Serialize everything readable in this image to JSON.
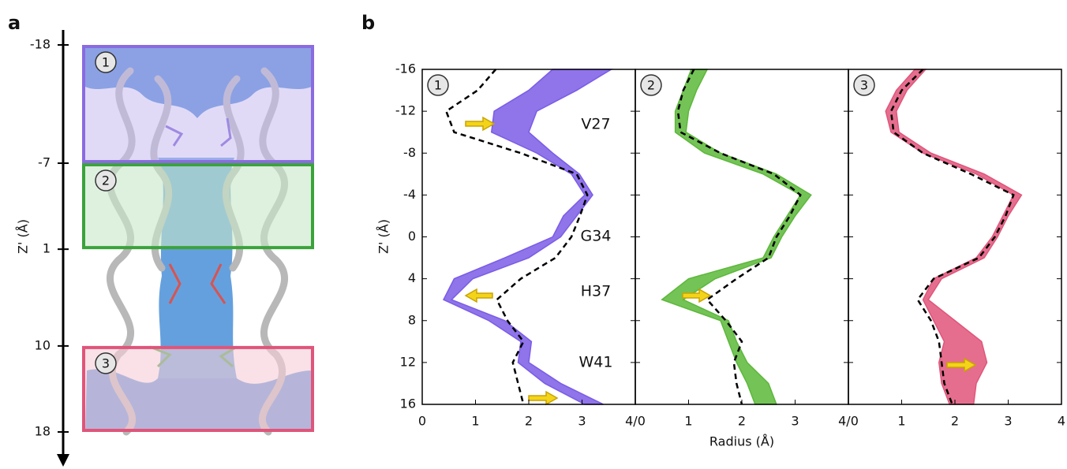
{
  "panel_a": {
    "label": "a",
    "axis_label": "Z' (Å)",
    "ylim": [
      -18,
      18
    ],
    "yticks": [
      -18,
      -7,
      1,
      10,
      18
    ],
    "regions": [
      "1",
      "2",
      "3"
    ]
  },
  "panel_b_label": "b",
  "chart_data": [
    {
      "type": "line",
      "label": "1",
      "ylabel": "Z' (Å)",
      "ylim": [
        -16,
        16
      ],
      "yticks": [
        -16,
        -12,
        -8,
        -4,
        0,
        4,
        8,
        12,
        16
      ],
      "ytick_labels": true,
      "xlim": [
        0,
        4
      ],
      "xticks": [
        0,
        1,
        2,
        3,
        {
          "value": 4,
          "label": "4/0"
        }
      ],
      "fill_between": true,
      "annotations": [
        "V27",
        "G34",
        "H37",
        "W41"
      ],
      "y": [
        -16,
        -14,
        -12,
        -10,
        -8,
        -6,
        -4,
        -2,
        0,
        2,
        4,
        6,
        8,
        10,
        12,
        14,
        16
      ],
      "series": [
        {
          "color": "#7b5ce6",
          "values": [
            2.45,
            2.0,
            1.35,
            1.3,
            2.15,
            2.8,
            3.05,
            2.65,
            2.45,
            1.55,
            0.6,
            0.4,
            1.25,
            1.85,
            1.8,
            2.3,
            3.05
          ]
        },
        {
          "color": "#7b5ce6",
          "values": [
            3.55,
            2.9,
            2.15,
            2.0,
            2.45,
            2.95,
            3.2,
            2.9,
            2.6,
            2.0,
            0.95,
            0.55,
            1.55,
            2.05,
            2.0,
            2.6,
            3.4
          ]
        },
        {
          "color": "#000000",
          "dashed": true,
          "values": [
            1.38,
            1.04,
            0.45,
            0.6,
            1.85,
            2.9,
            3.1,
            2.96,
            2.8,
            2.5,
            1.85,
            1.4,
            1.6,
            1.9,
            1.7,
            1.8,
            1.9
          ]
        }
      ]
    },
    {
      "type": "line",
      "label": "2",
      "xlabel": "Radius (Å)",
      "ylim": [
        -16,
        16
      ],
      "yticks": [
        -16,
        -12,
        -8,
        -4,
        0,
        4,
        8,
        12,
        16
      ],
      "ytick_labels": false,
      "xlim": [
        0,
        4
      ],
      "xticks": [
        1,
        2,
        3,
        {
          "value": 4,
          "label": "4/0"
        }
      ],
      "fill_between": true,
      "y": [
        -16,
        -14,
        -12,
        -10,
        -8,
        -6,
        -4,
        -2,
        0,
        2,
        4,
        6,
        8,
        10,
        12,
        14,
        16
      ],
      "series": [
        {
          "color": "#5cb83a",
          "values": [
            1.05,
            0.9,
            0.75,
            0.75,
            1.3,
            2.4,
            3.1,
            2.85,
            2.6,
            2.4,
            1.0,
            0.5,
            1.6,
            1.75,
            1.9,
            2.1,
            2.25
          ]
        },
        {
          "color": "#5cb83a",
          "values": [
            1.35,
            1.15,
            1.0,
            0.95,
            1.6,
            2.65,
            3.3,
            3.0,
            2.75,
            2.55,
            1.5,
            0.9,
            1.75,
            1.9,
            2.1,
            2.5,
            2.65
          ]
        },
        {
          "color": "#000000",
          "dashed": true,
          "values": [
            1.1,
            0.9,
            0.8,
            0.85,
            1.6,
            2.6,
            3.1,
            2.9,
            2.65,
            2.5,
            1.9,
            1.35,
            1.7,
            2.0,
            1.85,
            1.9,
            2.0
          ]
        }
      ]
    },
    {
      "type": "line",
      "label": "3",
      "ylim": [
        -16,
        16
      ],
      "yticks": [
        -16,
        -12,
        -8,
        -4,
        0,
        4,
        8,
        12,
        16
      ],
      "ytick_labels": false,
      "xlim": [
        0,
        4
      ],
      "xticks": [
        1,
        2,
        3,
        4
      ],
      "fill_between": true,
      "y": [
        -16,
        -14,
        -12,
        -10,
        -8,
        -6,
        -4,
        -2,
        0,
        2,
        4,
        6,
        8,
        10,
        12,
        14,
        16
      ],
      "series": [
        {
          "color": "#e0557a",
          "values": [
            1.25,
            0.9,
            0.7,
            0.8,
            1.4,
            2.4,
            3.1,
            2.9,
            2.7,
            2.4,
            1.6,
            1.4,
            1.6,
            1.8,
            1.7,
            1.75,
            1.9
          ]
        },
        {
          "color": "#e0557a",
          "values": [
            1.45,
            1.1,
            0.9,
            0.95,
            1.55,
            2.55,
            3.25,
            3.0,
            2.8,
            2.55,
            1.75,
            1.5,
            2.0,
            2.5,
            2.6,
            2.4,
            2.35
          ]
        },
        {
          "color": "#000000",
          "dashed": true,
          "values": [
            1.4,
            1.0,
            0.8,
            0.85,
            1.4,
            2.3,
            3.1,
            2.95,
            2.75,
            2.45,
            1.6,
            1.3,
            1.55,
            1.7,
            1.75,
            1.8,
            1.95
          ]
        }
      ]
    }
  ]
}
